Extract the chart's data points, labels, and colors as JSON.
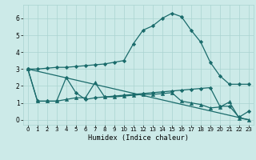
{
  "xlabel": "Humidex (Indice chaleur)",
  "bg_color": "#cceae8",
  "line_color": "#1a6b6b",
  "grid_color": "#aad4d0",
  "xlim": [
    -0.5,
    23.5
  ],
  "ylim": [
    -0.3,
    6.8
  ],
  "xticks": [
    0,
    1,
    2,
    3,
    4,
    5,
    6,
    7,
    8,
    9,
    10,
    11,
    12,
    13,
    14,
    15,
    16,
    17,
    18,
    19,
    20,
    21,
    22,
    23
  ],
  "yticks": [
    0,
    1,
    2,
    3,
    4,
    5,
    6
  ],
  "series": [
    {
      "x": [
        0,
        1,
        2,
        3,
        4,
        5,
        6,
        7,
        8,
        9,
        10,
        11,
        12,
        13,
        14,
        15,
        16,
        17,
        18,
        19,
        20,
        21,
        22,
        23
      ],
      "y": [
        3.0,
        3.0,
        3.05,
        3.1,
        3.1,
        3.15,
        3.2,
        3.25,
        3.3,
        3.4,
        3.5,
        4.5,
        5.3,
        5.55,
        6.0,
        6.3,
        6.1,
        5.3,
        4.6,
        3.4,
        2.6,
        2.1,
        2.1,
        2.1
      ],
      "marker": "D",
      "markersize": 2.2,
      "linewidth": 0.9
    },
    {
      "x": [
        0,
        1,
        2,
        3,
        4,
        5,
        6,
        7,
        8,
        9,
        10,
        11,
        12,
        13,
        14,
        15,
        16,
        17,
        18,
        19,
        20,
        21,
        22,
        23
      ],
      "y": [
        3.0,
        1.1,
        1.1,
        1.1,
        2.5,
        1.6,
        1.2,
        1.3,
        1.35,
        1.4,
        1.45,
        1.5,
        1.55,
        1.6,
        1.65,
        1.7,
        1.75,
        1.8,
        1.85,
        1.9,
        0.8,
        0.8,
        0.15,
        0.5
      ],
      "marker": "D",
      "markersize": 2.2,
      "linewidth": 0.9
    },
    {
      "x": [
        0,
        1,
        2,
        3,
        4,
        5,
        6,
        7,
        8,
        9,
        10,
        11,
        12,
        13,
        14,
        15,
        16,
        17,
        18,
        19,
        20,
        21,
        22,
        23
      ],
      "y": [
        3.0,
        1.1,
        1.1,
        1.1,
        1.2,
        1.3,
        1.3,
        2.2,
        1.35,
        1.35,
        1.4,
        1.45,
        1.5,
        1.5,
        1.55,
        1.6,
        1.1,
        1.0,
        0.9,
        0.7,
        0.75,
        1.05,
        0.1,
        0.0
      ],
      "marker": "^",
      "markersize": 3.0,
      "linewidth": 0.9
    },
    {
      "x": [
        0,
        23
      ],
      "y": [
        3.0,
        0.0
      ],
      "marker": null,
      "markersize": 0,
      "linewidth": 0.9
    }
  ]
}
